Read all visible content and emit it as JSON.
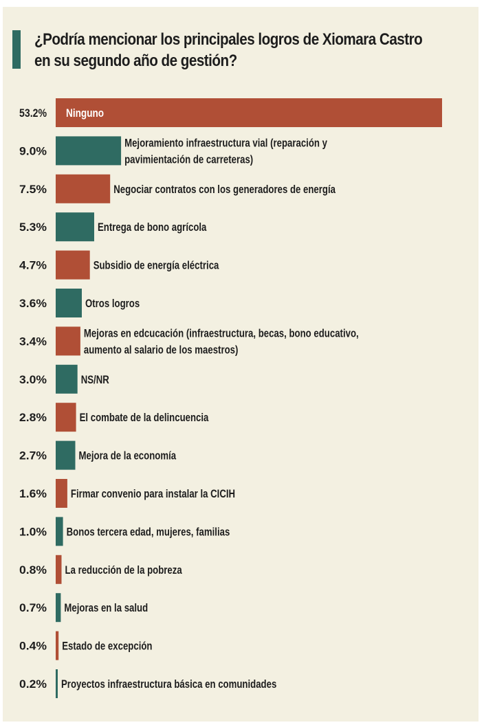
{
  "title_lines": [
    "¿Podría mencionar los principales logros de Xiomara Castro",
    "en su segundo año de gestión?"
  ],
  "colors": {
    "background": "#f3f0e1",
    "accent_bar": "#2f6b62",
    "orange": "#b04f36",
    "teal": "#2f6b62",
    "text": "#1d1d1d"
  },
  "chart_data": {
    "type": "bar",
    "orientation": "horizontal",
    "value_format": "percent",
    "xlim": [
      0,
      53.2
    ],
    "categories": [
      [
        "Ninguno"
      ],
      [
        "Mejoramiento infraestructura vial  (reparación y",
        "pavimientación de carreteras)"
      ],
      [
        "Negociar contratos con los generadores de energía"
      ],
      [
        "Entrega de bono agrícola"
      ],
      [
        "Subsidio de energía eléctrica"
      ],
      [
        "Otros logros"
      ],
      [
        "Mejoras en edcucación (infraestructura, becas, bono educativo,",
        "aumento al salario de los maestros)"
      ],
      [
        "NS/NR"
      ],
      [
        "El combate de la delincuencia"
      ],
      [
        "Mejora de la economía"
      ],
      [
        "Firmar convenio para instalar la CICIH"
      ],
      [
        "Bonos tercera edad, mujeres, familias"
      ],
      [
        "La reducción de la pobreza"
      ],
      [
        "Mejoras en la salud"
      ],
      [
        "Estado de excepción"
      ],
      [
        "Proyectos infraestructura básica en comunidades"
      ]
    ],
    "values": [
      53.2,
      9.0,
      7.5,
      5.3,
      4.7,
      3.6,
      3.4,
      3.0,
      2.8,
      2.7,
      1.6,
      1.0,
      0.8,
      0.7,
      0.4,
      0.2
    ],
    "value_labels": [
      "53.2%",
      "9.0%",
      "7.5%",
      "5.3%",
      "4.7%",
      "3.6%",
      "3.4%",
      "3.0%",
      "2.8%",
      "2.7%",
      "1.6%",
      "1.0%",
      "0.8%",
      "0.7%",
      "0.4%",
      "0.2%"
    ],
    "bar_colors": [
      "#b04f36",
      "#2f6b62",
      "#b04f36",
      "#2f6b62",
      "#b04f36",
      "#2f6b62",
      "#b04f36",
      "#2f6b62",
      "#b04f36",
      "#2f6b62",
      "#b04f36",
      "#2f6b62",
      "#b04f36",
      "#2f6b62",
      "#b04f36",
      "#2f6b62"
    ],
    "label_inside_first_bar": true
  }
}
